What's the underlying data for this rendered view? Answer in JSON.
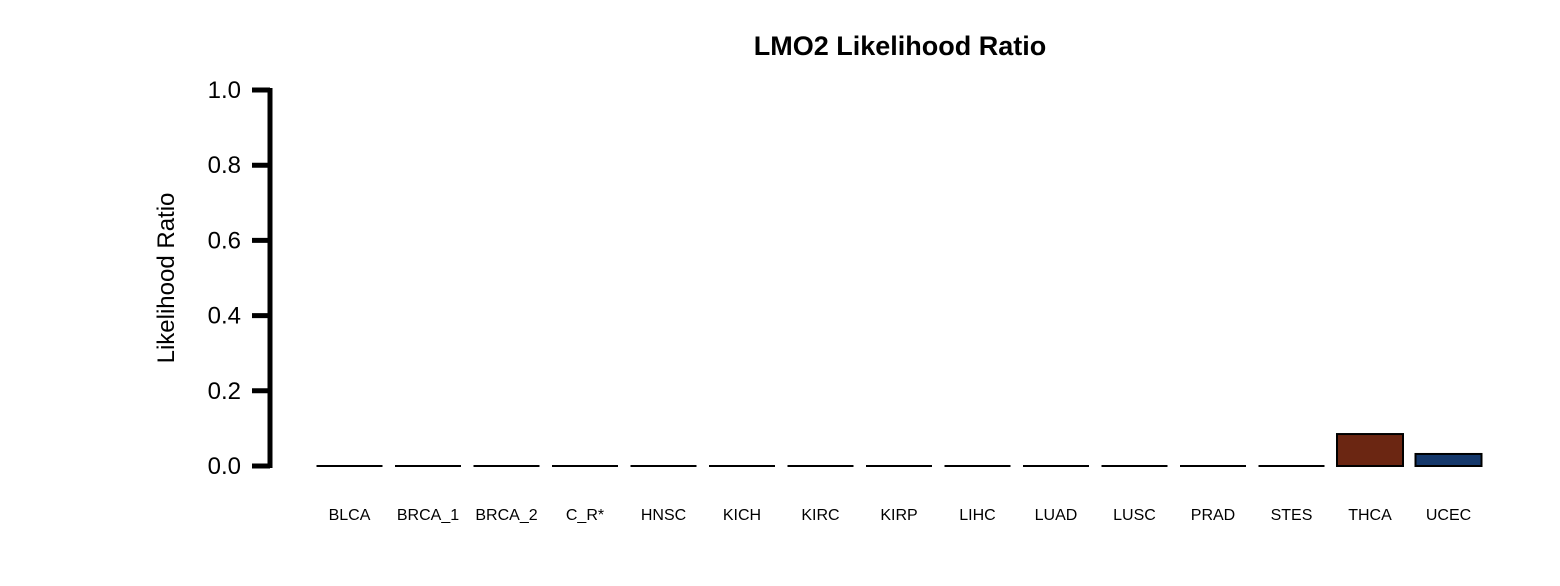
{
  "chart_data": {
    "type": "bar",
    "title": "LMO2 Likelihood Ratio",
    "xlabel": "",
    "ylabel": "Likelihood Ratio",
    "ylim": [
      0,
      1.0
    ],
    "yticks": [
      "0.0",
      "0.2",
      "0.4",
      "0.6",
      "0.8",
      "1.0"
    ],
    "ytick_values": [
      0,
      0.2,
      0.4,
      0.6,
      0.8,
      1.0
    ],
    "grid": false,
    "legend": "none",
    "categories": [
      "BLCA",
      "BRCA_1",
      "BRCA_2",
      "C_R*",
      "HNSC",
      "KICH",
      "KIRC",
      "KIRP",
      "LIHC",
      "LUAD",
      "LUSC",
      "PRAD",
      "STES",
      "THCA",
      "UCEC"
    ],
    "values": [
      0,
      0,
      0,
      0,
      0,
      0,
      0,
      0,
      0,
      0,
      0,
      0,
      0,
      0.085,
      0.032
    ],
    "colors": [
      "#ffffff",
      "#ffffff",
      "#ffffff",
      "#ffffff",
      "#ffffff",
      "#ffffff",
      "#ffffff",
      "#ffffff",
      "#ffffff",
      "#ffffff",
      "#ffffff",
      "#ffffff",
      "#ffffff",
      "#6b2612",
      "#15386b"
    ]
  }
}
